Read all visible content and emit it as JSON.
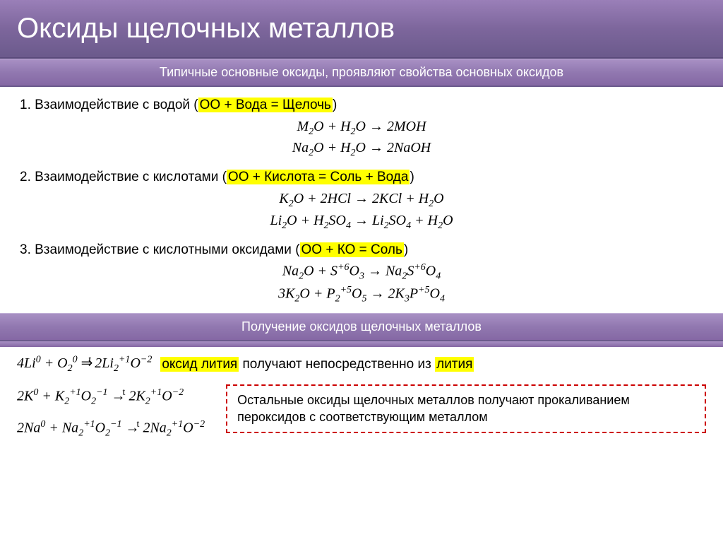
{
  "title": "Оксиды щелочных металлов",
  "subtitle1": "Типичные основные оксиды, проявляют свойства основных оксидов",
  "s1": {
    "heading_prefix": "1.  Взаимодействие с водой (",
    "hl": "ОО + Вода = Щелочь",
    "heading_suffix": ")",
    "eq1_html": "M<sub>2</sub>O + H<sub>2</sub>O → 2MOH",
    "eq2_html": "Na<sub>2</sub>O + H<sub>2</sub>O → 2NaOH"
  },
  "s2": {
    "heading_prefix": "2. Взаимодействие с кислотами (",
    "hl": "ОО + Кислота = Соль + Вода",
    "heading_suffix": ")",
    "eq1_html": "K<sub>2</sub>O + 2HCl → 2KCl + H<sub>2</sub>O",
    "eq2_html": "Li<sub>2</sub>O + H<sub>2</sub>SO<sub>4</sub> → Li<sub>2</sub>SO<sub>4</sub> + H<sub>2</sub>O"
  },
  "s3": {
    "heading_prefix": "3. Взаимодействие с кислотными оксидами (",
    "hl": "ОО + КО = Соль",
    "heading_suffix": ")",
    "eq1_html": "Na<sub>2</sub>O + S<sup>+6</sup>O<sub>3</sub> → Na<sub>2</sub>S<sup>+6</sup>O<sub>4</sub>",
    "eq2_html": "3K<sub>2</sub>O + P<sub>2</sub><sup>+5</sup>O<sub>5</sub> → 2K<sub>3</sub>P<sup>+5</sup>O<sub>4</sub>"
  },
  "subtitle2": "Получение оксидов щелочных металлов",
  "prep": {
    "li_eq_html": "4Li<sup>0</sup> + O<sub>2</sub><sup>0</sup> <span class='arrow'>⇒</span><sup style='font-style:normal;margin-left:-6px'>t</sup> 2Li<sub>2</sub><sup>+1</sup>O<sup>−2</sup>",
    "li_hl1": "оксид лития",
    "li_mid": " получают непосредственно из ",
    "li_hl2": "лития",
    "k_eq_html": "2K<sup>0</sup> + K<sub>2</sub><sup>+1</sup>O<sub>2</sub><sup>−1</sup> <span class='arrow'>→</span><sup style='font-style:normal;margin-left:-4px'>t</sup> 2K<sub>2</sub><sup>+1</sup>O<sup>−2</sup>",
    "na_eq_html": "2Na<sup>0</sup> + Na<sub>2</sub><sup>+1</sup>O<sub>2</sub><sup>−1</sup> <span class='arrow'>→</span><sup style='font-style:normal;margin-left:-4px'>t</sup> 2Na<sub>2</sub><sup>+1</sup>O<sup>−2</sup>",
    "box_text": "Остальные оксиды щелочных металлов получают прокаливанием пероксидов с соответствующим металлом"
  },
  "colors": {
    "title_bg": "#7d669c",
    "section_bg": "#9178b0",
    "highlight": "#ffff00",
    "dashed_border": "#cc0000",
    "text": "#000000",
    "title_text": "#ffffff"
  }
}
